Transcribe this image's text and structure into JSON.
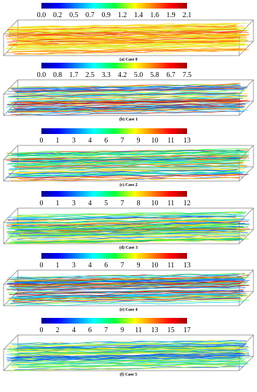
{
  "panels": [
    {
      "ticks": [
        "0.0",
        "0.2",
        "0.5",
        "0.7",
        "0.9",
        "1.2",
        "1.4",
        "1.6",
        "1.9",
        "2.1"
      ],
      "caption": "(a) Case 0"
    },
    {
      "ticks": [
        "0.0",
        "0.8",
        "1.7",
        "2.5",
        "3.3",
        "4.2",
        "5.0",
        "5.8",
        "6.7",
        "7.5"
      ],
      "caption": "(b) Case 1"
    },
    {
      "ticks": [
        "0",
        "1",
        "3",
        "4",
        "6",
        "7",
        "9",
        "10",
        "11",
        "13"
      ],
      "caption": "(c) Case 2"
    },
    {
      "ticks": [
        "0",
        "1",
        "3",
        "4",
        "5",
        "7",
        "8",
        "10",
        "11",
        "12"
      ],
      "caption": "(d) Case 3"
    },
    {
      "ticks": [
        "0",
        "1",
        "3",
        "4",
        "6",
        "7",
        "9",
        "10",
        "11",
        "13"
      ],
      "caption": "(e) Case 4"
    },
    {
      "ticks": [
        "0",
        "2",
        "4",
        "6",
        "7",
        "9",
        "11",
        "13",
        "15",
        "17"
      ],
      "caption": "(f) Case 5"
    }
  ]
}
